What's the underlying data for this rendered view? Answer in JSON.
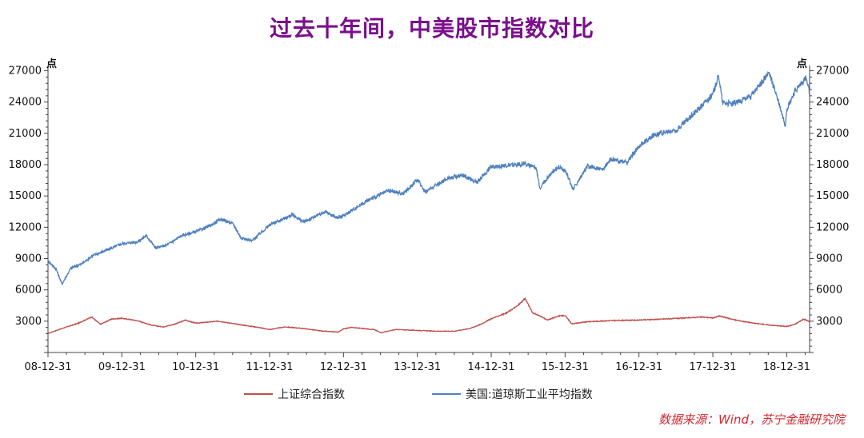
{
  "title": "过去十年间，中美股市指数对比",
  "source": "数据来源：Wind，苏宁金融研究院",
  "chart_data": {
    "type": "line",
    "title": "过去十年间，中美股市指数对比",
    "y_unit_left": "点",
    "y_unit_right": "点",
    "ylim": [
      0,
      27500
    ],
    "y_ticks": [
      3000,
      6000,
      9000,
      12000,
      15000,
      18000,
      21000,
      24000,
      27000
    ],
    "x_ticks": [
      "08-12-31",
      "09-12-31",
      "10-12-31",
      "11-12-31",
      "12-12-31",
      "13-12-31",
      "14-12-31",
      "15-12-31",
      "16-12-31",
      "17-12-31",
      "18-12-31"
    ],
    "x_range_years": [
      2008.99,
      2019.3
    ],
    "legend_position": "bottom",
    "series": [
      {
        "name": "上证综合指数",
        "color": "#c0504d",
        "points": [
          [
            2008.99,
            1820
          ],
          [
            2009.2,
            2350
          ],
          [
            2009.4,
            2800
          ],
          [
            2009.58,
            3400
          ],
          [
            2009.7,
            2700
          ],
          [
            2009.85,
            3200
          ],
          [
            2009.99,
            3277
          ],
          [
            2010.2,
            3050
          ],
          [
            2010.4,
            2600
          ],
          [
            2010.55,
            2450
          ],
          [
            2010.7,
            2700
          ],
          [
            2010.85,
            3100
          ],
          [
            2010.99,
            2808
          ],
          [
            2011.3,
            3000
          ],
          [
            2011.6,
            2650
          ],
          [
            2011.8,
            2450
          ],
          [
            2011.99,
            2199
          ],
          [
            2012.2,
            2450
          ],
          [
            2012.45,
            2300
          ],
          [
            2012.7,
            2050
          ],
          [
            2012.92,
            1950
          ],
          [
            2012.99,
            2269
          ],
          [
            2013.1,
            2400
          ],
          [
            2013.4,
            2200
          ],
          [
            2013.5,
            1900
          ],
          [
            2013.7,
            2200
          ],
          [
            2013.99,
            2116
          ],
          [
            2014.3,
            2030
          ],
          [
            2014.5,
            2050
          ],
          [
            2014.7,
            2300
          ],
          [
            2014.85,
            2700
          ],
          [
            2014.99,
            3235
          ],
          [
            2015.2,
            3800
          ],
          [
            2015.35,
            4500
          ],
          [
            2015.45,
            5166
          ],
          [
            2015.55,
            3800
          ],
          [
            2015.65,
            3500
          ],
          [
            2015.75,
            3100
          ],
          [
            2015.9,
            3500
          ],
          [
            2015.99,
            3539
          ],
          [
            2016.08,
            2750
          ],
          [
            2016.3,
            2950
          ],
          [
            2016.6,
            3050
          ],
          [
            2016.99,
            3104
          ],
          [
            2017.3,
            3200
          ],
          [
            2017.6,
            3300
          ],
          [
            2017.85,
            3400
          ],
          [
            2017.99,
            3307
          ],
          [
            2018.08,
            3500
          ],
          [
            2018.3,
            3100
          ],
          [
            2018.55,
            2800
          ],
          [
            2018.8,
            2600
          ],
          [
            2018.99,
            2494
          ],
          [
            2019.1,
            2700
          ],
          [
            2019.22,
            3200
          ],
          [
            2019.3,
            2950
          ]
        ]
      },
      {
        "name": "美国:道琼斯工业平均指数",
        "color": "#4f81bd",
        "points": [
          [
            2008.99,
            8776
          ],
          [
            2009.1,
            8000
          ],
          [
            2009.18,
            6547
          ],
          [
            2009.3,
            8100
          ],
          [
            2009.45,
            8500
          ],
          [
            2009.6,
            9300
          ],
          [
            2009.75,
            9700
          ],
          [
            2009.99,
            10428
          ],
          [
            2010.2,
            10600
          ],
          [
            2010.32,
            11200
          ],
          [
            2010.45,
            10000
          ],
          [
            2010.6,
            10300
          ],
          [
            2010.8,
            11200
          ],
          [
            2010.99,
            11578
          ],
          [
            2011.2,
            12200
          ],
          [
            2011.33,
            12800
          ],
          [
            2011.5,
            12300
          ],
          [
            2011.6,
            11000
          ],
          [
            2011.75,
            10700
          ],
          [
            2011.99,
            12218
          ],
          [
            2012.3,
            13200
          ],
          [
            2012.45,
            12500
          ],
          [
            2012.75,
            13500
          ],
          [
            2012.9,
            12900
          ],
          [
            2012.99,
            13104
          ],
          [
            2013.3,
            14500
          ],
          [
            2013.6,
            15500
          ],
          [
            2013.8,
            15200
          ],
          [
            2013.99,
            16577
          ],
          [
            2014.1,
            15400
          ],
          [
            2014.4,
            16700
          ],
          [
            2014.6,
            17000
          ],
          [
            2014.8,
            16300
          ],
          [
            2014.99,
            17823
          ],
          [
            2015.2,
            17900
          ],
          [
            2015.45,
            18100
          ],
          [
            2015.6,
            17600
          ],
          [
            2015.65,
            15800
          ],
          [
            2015.8,
            17200
          ],
          [
            2015.9,
            17800
          ],
          [
            2015.99,
            17425
          ],
          [
            2016.1,
            15660
          ],
          [
            2016.3,
            17900
          ],
          [
            2016.5,
            17500
          ],
          [
            2016.6,
            18500
          ],
          [
            2016.83,
            18200
          ],
          [
            2016.99,
            19762
          ],
          [
            2017.2,
            20900
          ],
          [
            2017.5,
            21300
          ],
          [
            2017.8,
            23400
          ],
          [
            2017.99,
            24719
          ],
          [
            2018.07,
            26600
          ],
          [
            2018.12,
            24000
          ],
          [
            2018.25,
            23800
          ],
          [
            2018.5,
            24500
          ],
          [
            2018.75,
            26800
          ],
          [
            2018.85,
            24700
          ],
          [
            2018.97,
            21800
          ],
          [
            2018.99,
            23327
          ],
          [
            2019.1,
            25000
          ],
          [
            2019.25,
            26300
          ],
          [
            2019.3,
            24800
          ]
        ]
      }
    ]
  }
}
